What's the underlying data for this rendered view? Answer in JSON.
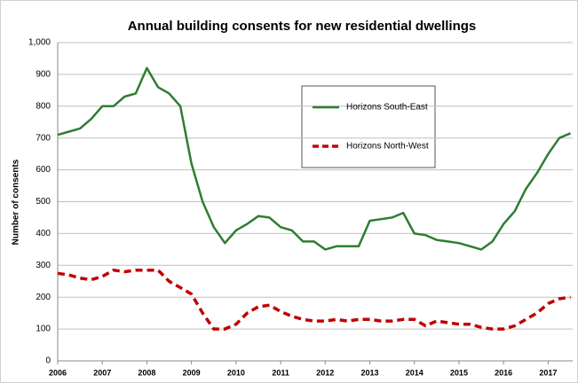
{
  "chart_data": {
    "type": "line",
    "title": "Annual building consents for new residential dwellings",
    "y_label": "Number of consents",
    "x": [
      2006,
      2006.25,
      2006.5,
      2006.75,
      2007,
      2007.25,
      2007.5,
      2007.75,
      2008,
      2008.25,
      2008.5,
      2008.75,
      2009,
      2009.25,
      2009.5,
      2009.75,
      2010,
      2010.25,
      2010.5,
      2010.75,
      2011,
      2011.25,
      2011.5,
      2011.75,
      2012,
      2012.25,
      2012.5,
      2012.75,
      2013,
      2013.25,
      2013.5,
      2013.75,
      2014,
      2014.25,
      2014.5,
      2014.75,
      2015,
      2015.25,
      2015.5,
      2015.75,
      2016,
      2016.25,
      2016.5,
      2016.75,
      2017,
      2017.25,
      2017.5
    ],
    "series": [
      {
        "name": "Horizons South-East",
        "color": "#2e7d32",
        "style": "solid",
        "values": [
          710,
          720,
          730,
          760,
          800,
          800,
          830,
          840,
          920,
          860,
          840,
          800,
          620,
          500,
          420,
          370,
          410,
          430,
          455,
          450,
          420,
          410,
          375,
          375,
          350,
          360,
          360,
          360,
          440,
          445,
          450,
          465,
          400,
          395,
          380,
          375,
          370,
          360,
          350,
          375,
          430,
          470,
          540,
          590,
          650,
          700,
          715
        ]
      },
      {
        "name": "Horizons North-West",
        "color": "#c00000",
        "style": "dashed",
        "values": [
          275,
          270,
          260,
          255,
          265,
          285,
          280,
          285,
          285,
          285,
          250,
          230,
          210,
          150,
          100,
          100,
          115,
          150,
          170,
          175,
          155,
          140,
          130,
          125,
          125,
          130,
          125,
          130,
          130,
          125,
          125,
          130,
          130,
          110,
          125,
          120,
          115,
          115,
          105,
          100,
          100,
          110,
          130,
          150,
          180,
          195,
          200
        ]
      }
    ],
    "xlim": [
      2006,
      2017.55
    ],
    "xticks": [
      2006,
      2007,
      2008,
      2009,
      2010,
      2011,
      2012,
      2013,
      2014,
      2015,
      2016,
      2017
    ],
    "ylim": [
      0,
      1000
    ],
    "yticks": [
      0,
      100,
      200,
      300,
      400,
      500,
      600,
      700,
      800,
      900,
      {
        "value": 1000,
        "label": "1,000"
      }
    ],
    "grid": true
  }
}
